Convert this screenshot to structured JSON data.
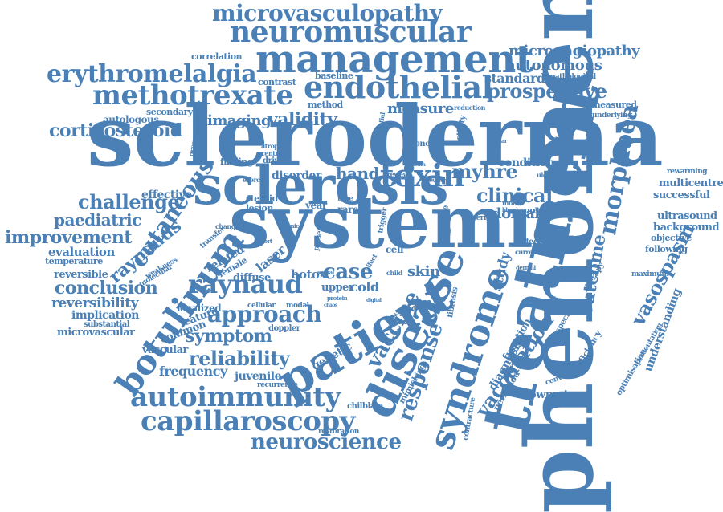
{
  "colors": {
    "word": "#4a80b5",
    "background": "#ffffff"
  },
  "words": [
    "phenomenon",
    "scleroderma",
    "systemic",
    "sclerosis",
    "treatment",
    "patient",
    "disease",
    "management",
    "endothelial",
    "neuromuscular",
    "methotrexate",
    "erythromelalgia",
    "microvasculopathy",
    "autoimmunity",
    "capillaroscopy",
    "neuroscience",
    "botulinum",
    "syndrome",
    "raynaud",
    "approach",
    "toxin",
    "response",
    "vaccination",
    "vaccine",
    "cutaneous",
    "morphoea",
    "vasospasm",
    "prospective",
    "microangiopathy",
    "autonomous",
    "standard",
    "corticosteroid",
    "challenge",
    "paediatric",
    "improvement",
    "evaluation",
    "temperature",
    "reversible",
    "conclusion",
    "reversibility",
    "implication",
    "substantial",
    "microvascular",
    "raynauds",
    "reliability",
    "symptom",
    "frequency",
    "juvenile",
    "recurrence",
    "chilblain",
    "restoration",
    "vascular",
    "common",
    "feature",
    "localized",
    "clinical",
    "dorsal",
    "condition",
    "myhre",
    "hand",
    "case",
    "skin",
    "study",
    "outcome",
    "imaging",
    "validity",
    "measure",
    "correlation",
    "contrast",
    "baseline",
    "method",
    "reduction",
    "pathological",
    "measured",
    "underlying",
    "autologous",
    "secondary",
    "progressive",
    "multicentre",
    "successful",
    "rewarming",
    "ultrasound",
    "background",
    "objective",
    "following",
    "maximum",
    "understanding",
    "optimisation",
    "presentation",
    "flowmetry",
    "convergent",
    "deficiency",
    "speckle",
    "therapy",
    "diagnosis",
    "function",
    "perfusion",
    "contracture",
    "mimicking",
    "fibrosis",
    "severe",
    "week",
    "genetic",
    "doppler",
    "cellular",
    "modal",
    "botox",
    "diffuse",
    "laser",
    "related",
    "female",
    "weakness",
    "molecular",
    "transfer",
    "steroid",
    "lesion",
    "effective",
    "year",
    "rare",
    "cold",
    "upper",
    "disorder",
    "finding",
    "exercise",
    "driven",
    "centre",
    "atrophy",
    "phone",
    "potential",
    "activity",
    "mouse",
    "possible",
    "ulceration",
    "defect",
    "current",
    "mobile",
    "cell",
    "present",
    "series",
    "review",
    "severity",
    "change",
    "cohort",
    "mimic",
    "type",
    "trigger",
    "spinal",
    "dermal",
    "effect",
    "protein",
    "chaos",
    "blood",
    "digital",
    "child",
    "linear",
    "mouth",
    "medical",
    "tissue"
  ]
}
